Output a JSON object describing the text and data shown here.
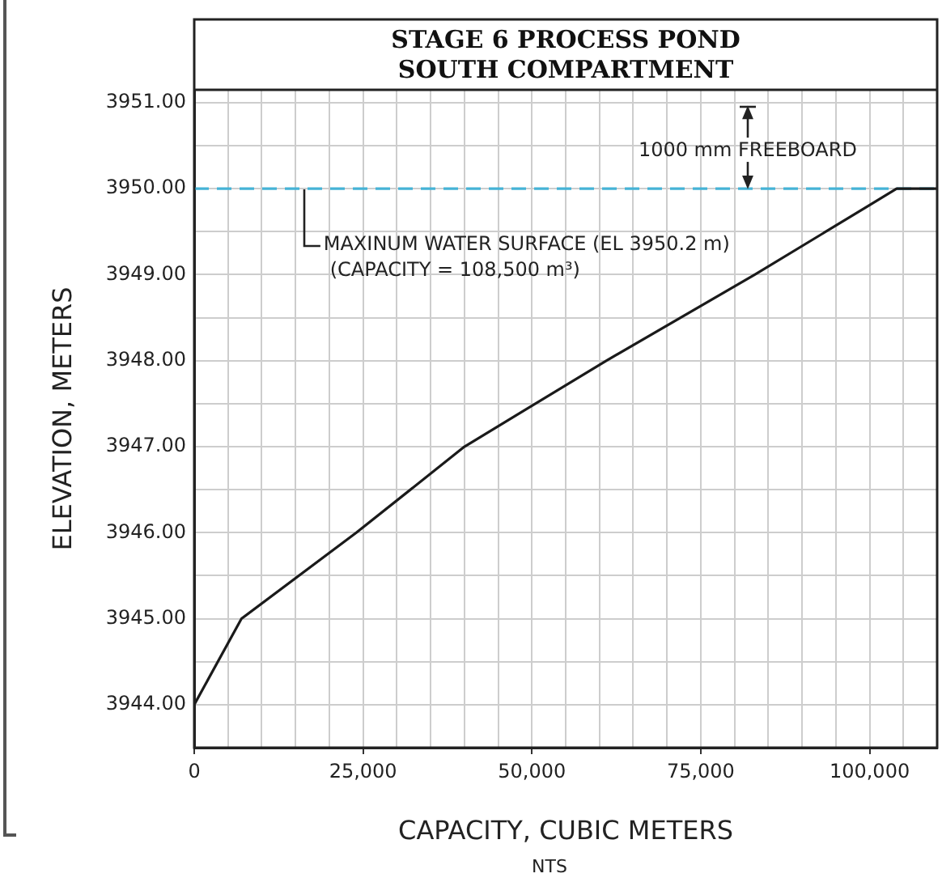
{
  "chart_data": {
    "type": "line",
    "title": "STAGE 6 PROCESS POND\nSOUTH COMPARTMENT",
    "xlabel": "CAPACITY, CUBIC METERS",
    "ylabel": "ELEVATION, METERS",
    "x": [
      0,
      7000,
      24000,
      40000,
      61000,
      83000,
      104000,
      110000
    ],
    "values": [
      3944.0,
      3945.0,
      3946.0,
      3947.0,
      3948.0,
      3949.0,
      3950.0,
      3950.0
    ],
    "color": "#1a1a1a",
    "xlim": [
      0,
      110000
    ],
    "xticks": [
      0,
      {
        "value": 5000,
        "label": null
      },
      {
        "value": 10000,
        "label": null
      },
      {
        "value": 15000,
        "label": null
      },
      {
        "value": 20000,
        "label": null
      },
      {
        "value": 25000,
        "label": "25,000"
      },
      {
        "value": 30000,
        "label": null
      },
      {
        "value": 35000,
        "label": null
      },
      {
        "value": 40000,
        "label": null
      },
      {
        "value": 45000,
        "label": null
      },
      {
        "value": 50000,
        "label": "50,000"
      },
      {
        "value": 55000,
        "label": null
      },
      {
        "value": 60000,
        "label": null
      },
      {
        "value": 65000,
        "label": null
      },
      {
        "value": 70000,
        "label": null
      },
      {
        "value": 75000,
        "label": "75,000"
      },
      {
        "value": 80000,
        "label": null
      },
      {
        "value": 85000,
        "label": null
      },
      {
        "value": 90000,
        "label": null
      },
      {
        "value": 95000,
        "label": null
      },
      {
        "value": 100000,
        "label": "100,000"
      },
      {
        "value": 105000,
        "label": null
      }
    ],
    "ylim": [
      3943.5,
      3951.15
    ],
    "yticks": [
      {
        "value": 3944,
        "label": "3944.00"
      },
      {
        "value": 3944.5,
        "label": null
      },
      {
        "value": 3945,
        "label": "3945.00"
      },
      {
        "value": 3945.5,
        "label": null
      },
      {
        "value": 3946,
        "label": "3946.00"
      },
      {
        "value": 3946.5,
        "label": null
      },
      {
        "value": 3947,
        "label": "3947.00"
      },
      {
        "value": 3947.5,
        "label": null
      },
      {
        "value": 3948,
        "label": "3948.00"
      },
      {
        "value": 3948.5,
        "label": null
      },
      {
        "value": 3949,
        "label": "3949.00"
      },
      {
        "value": 3949.5,
        "label": null
      },
      {
        "value": 3950,
        "label": "3950.00"
      },
      {
        "value": 3950.5,
        "label": null
      },
      {
        "value": 3951,
        "label": "3951.00"
      }
    ],
    "grid": true,
    "legend": false,
    "marker": "none",
    "line_style": "solid",
    "ref_lines": [
      {
        "axis": "y",
        "value": 3950,
        "color": "#45b3d6",
        "line_style": "dashed"
      }
    ],
    "annotations": [
      "MAXINUM WATER SURFACE (EL 3950.2 m)\n(CAPACITY = 108,500 m³)",
      "1000 mm FREEBOARD",
      "NTS"
    ]
  }
}
